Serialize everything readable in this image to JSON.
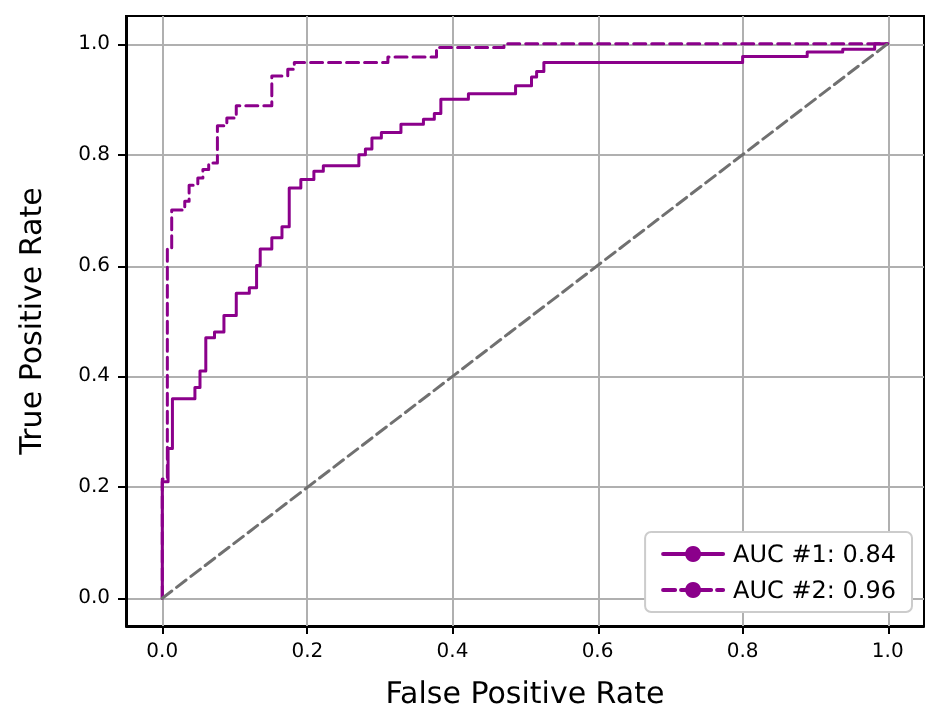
{
  "chart_data": {
    "type": "line",
    "xlabel": "False Positive Rate",
    "ylabel": "True Positive Rate",
    "xlim": [
      -0.05,
      1.05
    ],
    "ylim": [
      -0.05,
      1.05
    ],
    "xticks": [
      {
        "value": 0,
        "label": "0.0"
      },
      {
        "value": 0.2,
        "label": "0.2"
      },
      {
        "value": 0.4,
        "label": "0.4"
      },
      {
        "value": 0.6,
        "label": "0.6"
      },
      {
        "value": 0.8,
        "label": "0.8"
      },
      {
        "value": 1,
        "label": "1.0"
      }
    ],
    "yticks": [
      {
        "value": 0,
        "label": "0.0"
      },
      {
        "value": 0.2,
        "label": "0.2"
      },
      {
        "value": 0.4,
        "label": "0.4"
      },
      {
        "value": 0.6,
        "label": "0.6"
      },
      {
        "value": 0.8,
        "label": "0.8"
      },
      {
        "value": 1,
        "label": "1.0"
      }
    ],
    "grid": true,
    "legend": "bottom right",
    "marker": "none",
    "series": [
      {
        "name": "AUC #1: 0.84",
        "color": "#8b008b",
        "line_style": "solid",
        "x": [
          0,
          0,
          0.008,
          0.008,
          0.014,
          0.014,
          0.045,
          0.045,
          0.052,
          0.052,
          0.06,
          0.06,
          0.072,
          0.072,
          0.085,
          0.085,
          0.102,
          0.102,
          0.12,
          0.12,
          0.13,
          0.13,
          0.135,
          0.135,
          0.151,
          0.151,
          0.165,
          0.165,
          0.175,
          0.175,
          0.191,
          0.191,
          0.209,
          0.209,
          0.222,
          0.222,
          0.271,
          0.271,
          0.28,
          0.28,
          0.289,
          0.289,
          0.302,
          0.302,
          0.329,
          0.329,
          0.36,
          0.36,
          0.375,
          0.375,
          0.384,
          0.384,
          0.422,
          0.422,
          0.487,
          0.487,
          0.509,
          0.509,
          0.516,
          0.516,
          0.526,
          0.526,
          0.8,
          0.8,
          0.889,
          0.889,
          0.938,
          0.938,
          0.982,
          0.982,
          1
        ],
        "values": [
          0,
          0.21,
          0.21,
          0.27,
          0.27,
          0.36,
          0.36,
          0.38,
          0.38,
          0.41,
          0.41,
          0.47,
          0.47,
          0.48,
          0.48,
          0.51,
          0.51,
          0.55,
          0.55,
          0.56,
          0.56,
          0.6,
          0.6,
          0.63,
          0.63,
          0.65,
          0.65,
          0.67,
          0.67,
          0.74,
          0.74,
          0.755,
          0.755,
          0.77,
          0.77,
          0.78,
          0.78,
          0.8,
          0.8,
          0.81,
          0.81,
          0.83,
          0.83,
          0.84,
          0.84,
          0.855,
          0.855,
          0.864,
          0.864,
          0.874,
          0.874,
          0.9,
          0.9,
          0.91,
          0.91,
          0.924,
          0.924,
          0.94,
          0.94,
          0.95,
          0.95,
          0.966,
          0.966,
          0.977,
          0.977,
          0.985,
          0.985,
          0.99,
          0.99,
          1,
          1
        ]
      },
      {
        "name": "AUC #2: 0.96",
        "color": "#8b008b",
        "line_style": "dashed",
        "x": [
          0,
          0,
          0.007,
          0.007,
          0.013,
          0.013,
          0.031,
          0.031,
          0.037,
          0.037,
          0.049,
          0.049,
          0.056,
          0.056,
          0.064,
          0.064,
          0.076,
          0.076,
          0.089,
          0.089,
          0.102,
          0.102,
          0.151,
          0.151,
          0.173,
          0.173,
          0.182,
          0.182,
          0.311,
          0.311,
          0.378,
          0.378,
          0.471,
          0.471,
          1
        ],
        "values": [
          0,
          0.215,
          0.215,
          0.63,
          0.63,
          0.7,
          0.7,
          0.716,
          0.716,
          0.745,
          0.745,
          0.758,
          0.758,
          0.773,
          0.773,
          0.785,
          0.785,
          0.852,
          0.852,
          0.866,
          0.866,
          0.888,
          0.888,
          0.942,
          0.942,
          0.954,
          0.954,
          0.966,
          0.966,
          0.976,
          0.976,
          0.993,
          0.993,
          1,
          1
        ]
      },
      {
        "color": "#707070",
        "line_style": "dashed",
        "x": [
          0,
          1
        ],
        "values": [
          0,
          1
        ]
      }
    ]
  }
}
